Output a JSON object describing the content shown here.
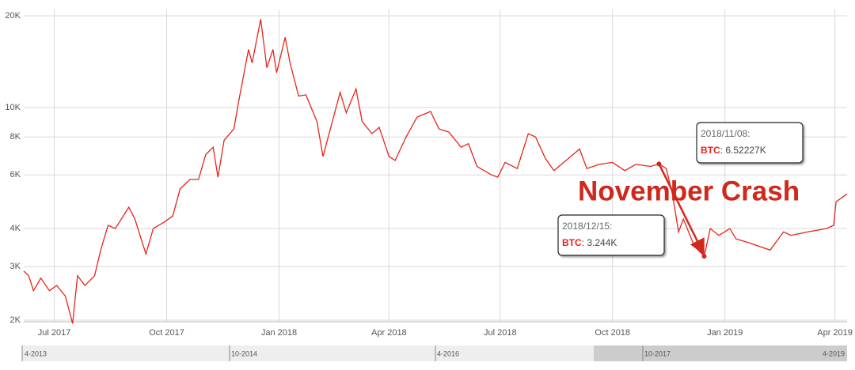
{
  "chart_data": {
    "type": "line",
    "log_scale_y": true,
    "grid": true,
    "xlim": [
      "2017-06-06",
      "2019-04-11"
    ],
    "ylim": [
      2000,
      20000
    ],
    "xticks": [
      {
        "value": "2017-07-01",
        "label": "Jul 2017"
      },
      {
        "value": "2017-10-01",
        "label": "Oct 2017"
      },
      {
        "value": "2018-01-01",
        "label": "Jan 2018"
      },
      {
        "value": "2018-04-01",
        "label": "Apr 2018"
      },
      {
        "value": "2018-07-01",
        "label": "Jul 2018"
      },
      {
        "value": "2018-10-01",
        "label": "Oct 2018"
      },
      {
        "value": "2019-01-01",
        "label": "Jan 2019"
      },
      {
        "value": "2019-04-01",
        "label": "Apr 2019"
      }
    ],
    "yticks": [
      {
        "value": 2000,
        "label": "2K"
      },
      {
        "value": 3000,
        "label": "3K"
      },
      {
        "value": 4000,
        "label": "4K"
      },
      {
        "value": 6000,
        "label": "6K"
      },
      {
        "value": 8000,
        "label": "8K"
      },
      {
        "value": 10000,
        "label": "10K"
      },
      {
        "value": 20000,
        "label": "20K"
      }
    ],
    "x": [
      "2017-06-06",
      "2017-06-10",
      "2017-06-14",
      "2017-06-20",
      "2017-06-27",
      "2017-07-03",
      "2017-07-10",
      "2017-07-16",
      "2017-07-20",
      "2017-07-26",
      "2017-08-03",
      "2017-08-08",
      "2017-08-14",
      "2017-08-20",
      "2017-08-31",
      "2017-09-05",
      "2017-09-14",
      "2017-09-20",
      "2017-09-29",
      "2017-10-06",
      "2017-10-12",
      "2017-10-20",
      "2017-10-27",
      "2017-11-02",
      "2017-11-08",
      "2017-11-12",
      "2017-11-17",
      "2017-11-25",
      "2017-11-29",
      "2017-12-07",
      "2017-12-10",
      "2017-12-17",
      "2017-12-22",
      "2017-12-27",
      "2017-12-30",
      "2018-01-06",
      "2018-01-10",
      "2018-01-17",
      "2018-01-23",
      "2018-02-01",
      "2018-02-06",
      "2018-02-12",
      "2018-02-20",
      "2018-02-25",
      "2018-03-05",
      "2018-03-10",
      "2018-03-18",
      "2018-03-24",
      "2018-04-01",
      "2018-04-06",
      "2018-04-15",
      "2018-04-24",
      "2018-05-05",
      "2018-05-12",
      "2018-05-20",
      "2018-05-30",
      "2018-06-05",
      "2018-06-12",
      "2018-06-24",
      "2018-06-29",
      "2018-07-05",
      "2018-07-15",
      "2018-07-24",
      "2018-07-30",
      "2018-08-07",
      "2018-08-14",
      "2018-08-24",
      "2018-09-04",
      "2018-09-10",
      "2018-09-20",
      "2018-10-01",
      "2018-10-11",
      "2018-10-20",
      "2018-11-01",
      "2018-11-08",
      "2018-11-14",
      "2018-11-19",
      "2018-11-24",
      "2018-11-28",
      "2018-12-07",
      "2018-12-15",
      "2018-12-20",
      "2018-12-27",
      "2019-01-05",
      "2019-01-10",
      "2019-01-20",
      "2019-02-07",
      "2019-02-18",
      "2019-02-24",
      "2019-03-10",
      "2019-03-25",
      "2019-03-31",
      "2019-04-02",
      "2019-04-11"
    ],
    "series": [
      {
        "name": "BTC",
        "color": "#e8231a",
        "values": [
          2900,
          2800,
          2500,
          2750,
          2500,
          2600,
          2400,
          1950,
          2800,
          2600,
          2800,
          3400,
          4100,
          4000,
          4700,
          4300,
          3300,
          4000,
          4200,
          4400,
          5400,
          5800,
          5800,
          7000,
          7400,
          5900,
          7800,
          8500,
          10500,
          15500,
          14000,
          19500,
          13500,
          15500,
          13000,
          17000,
          14000,
          10900,
          11000,
          9000,
          6900,
          8500,
          11200,
          9600,
          11500,
          9000,
          8200,
          8600,
          6900,
          6700,
          8000,
          9300,
          9700,
          8500,
          8300,
          7400,
          7600,
          6400,
          6000,
          5900,
          6600,
          6300,
          8200,
          8000,
          6800,
          6200,
          6700,
          7300,
          6300,
          6500,
          6600,
          6200,
          6500,
          6400,
          6522.27,
          6300,
          5200,
          3900,
          4300,
          3500,
          3244,
          4000,
          3800,
          4000,
          3700,
          3600,
          3400,
          3900,
          3800,
          3900,
          4000,
          4100,
          4900,
          5200
        ]
      }
    ],
    "annotation": "November Crash",
    "tooltips": [
      {
        "date": "2018/11/08:",
        "series": "BTC",
        "value": ": 6.52227K"
      },
      {
        "date": "2018/12/15:",
        "series": "BTC",
        "value": ": 3.244K"
      }
    ],
    "navigator_labels": [
      "4-2013",
      "10-2014",
      "4-2016",
      "10-2017",
      "4-2019"
    ]
  }
}
